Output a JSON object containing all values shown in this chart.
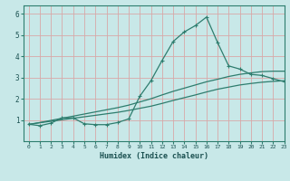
{
  "xlabel": "Humidex (Indice chaleur)",
  "x_values": [
    0,
    1,
    2,
    3,
    4,
    5,
    6,
    7,
    8,
    9,
    10,
    11,
    12,
    13,
    14,
    15,
    16,
    17,
    18,
    19,
    20,
    21,
    22,
    23
  ],
  "y_main": [
    0.8,
    0.73,
    0.85,
    1.1,
    1.1,
    0.82,
    0.78,
    0.78,
    0.88,
    1.05,
    2.12,
    2.85,
    3.8,
    4.7,
    5.15,
    5.45,
    5.85,
    4.65,
    3.55,
    3.4,
    3.15,
    3.1,
    2.95,
    2.8
  ],
  "y_line1": [
    0.8,
    0.87,
    0.94,
    1.01,
    1.08,
    1.15,
    1.22,
    1.29,
    1.36,
    1.45,
    1.55,
    1.65,
    1.78,
    1.92,
    2.05,
    2.18,
    2.32,
    2.45,
    2.55,
    2.65,
    2.72,
    2.78,
    2.82,
    2.85
  ],
  "y_line2": [
    0.78,
    0.88,
    0.98,
    1.08,
    1.18,
    1.28,
    1.38,
    1.48,
    1.58,
    1.7,
    1.85,
    2.0,
    2.18,
    2.35,
    2.5,
    2.65,
    2.8,
    2.92,
    3.05,
    3.15,
    3.22,
    3.28,
    3.3,
    3.3
  ],
  "line_color": "#2e7d6e",
  "bg_color": "#c8e8e8",
  "plot_bg": "#c8e8e8",
  "grid_color": "#d8a8a8",
  "xlim": [
    -0.5,
    23
  ],
  "ylim": [
    0,
    6.4
  ],
  "xticks": [
    0,
    1,
    2,
    3,
    4,
    5,
    6,
    7,
    8,
    9,
    10,
    11,
    12,
    13,
    14,
    15,
    16,
    17,
    18,
    19,
    20,
    21,
    22,
    23
  ],
  "yticks": [
    1,
    2,
    3,
    4,
    5,
    6
  ]
}
